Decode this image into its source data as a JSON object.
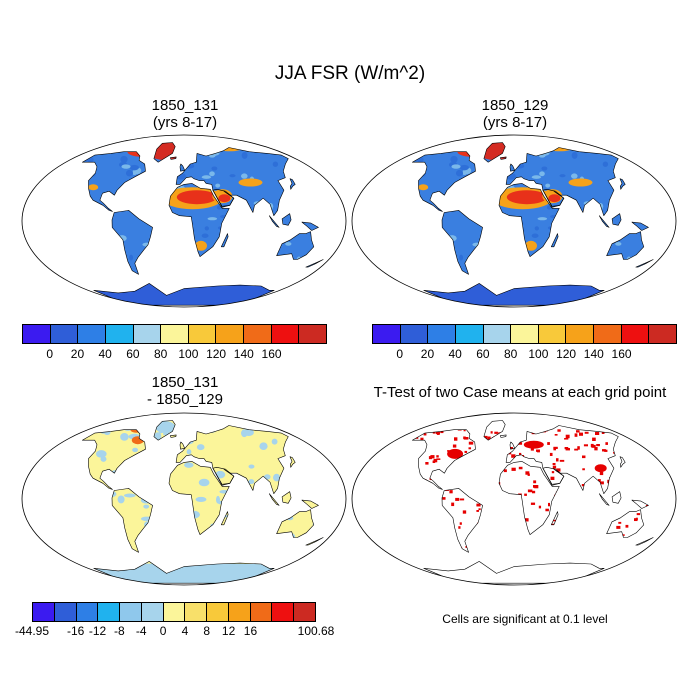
{
  "title": "JJA FSR (W/m^2)",
  "panels": [
    {
      "title_line1": "1850_131",
      "title_line2": "(yrs 8-17)",
      "kind": "field"
    },
    {
      "title_line1": "1850_129",
      "title_line2": "(yrs 8-17)",
      "kind": "field"
    },
    {
      "title_line1": "1850_131",
      "title_line2": "- 1850_129",
      "kind": "difference"
    },
    {
      "title_line1": "T-Test of two Case means at each grid point",
      "title_line2": "",
      "kind": "significance"
    }
  ],
  "colorbar_field": {
    "colors": [
      "#3b1bf0",
      "#2f5ed8",
      "#2e7fe6",
      "#20b2ee",
      "#a7d4ec",
      "#fbf59a",
      "#f8c93a",
      "#f6a21a",
      "#f06b18",
      "#ee1010",
      "#cc2a22"
    ],
    "labels": [
      "0",
      "20",
      "40",
      "60",
      "80",
      "100",
      "120",
      "140",
      "160"
    ]
  },
  "colorbar_diff": {
    "colors": [
      "#3b1bf0",
      "#2f5ed8",
      "#2e7fe6",
      "#20b2ee",
      "#8fc8ec",
      "#a7d4ec",
      "#fbf59a",
      "#f8e06a",
      "#f8c93a",
      "#f6a21a",
      "#f06b18",
      "#ee1010",
      "#cc2a22"
    ],
    "labels": [
      "-44.95",
      "-16",
      "-12",
      "-8",
      "-4",
      "0",
      "4",
      "8",
      "12",
      "16",
      "100.68"
    ]
  },
  "significance_note": "Cells are significant at 0.1 level",
  "colors": {
    "ocean": "#ffffff",
    "land_low": "#3a7fe0",
    "land_mid": "#7ab8ea",
    "desert": "#f6a21a",
    "desert_hot": "#e8311a",
    "ice": "#d42b22",
    "antarctica": "#2f5ed8",
    "diff_land": "#fbf59a",
    "diff_neg": "#a7d4ec",
    "diff_pos": "#f06b18",
    "sig": "#e60000"
  }
}
